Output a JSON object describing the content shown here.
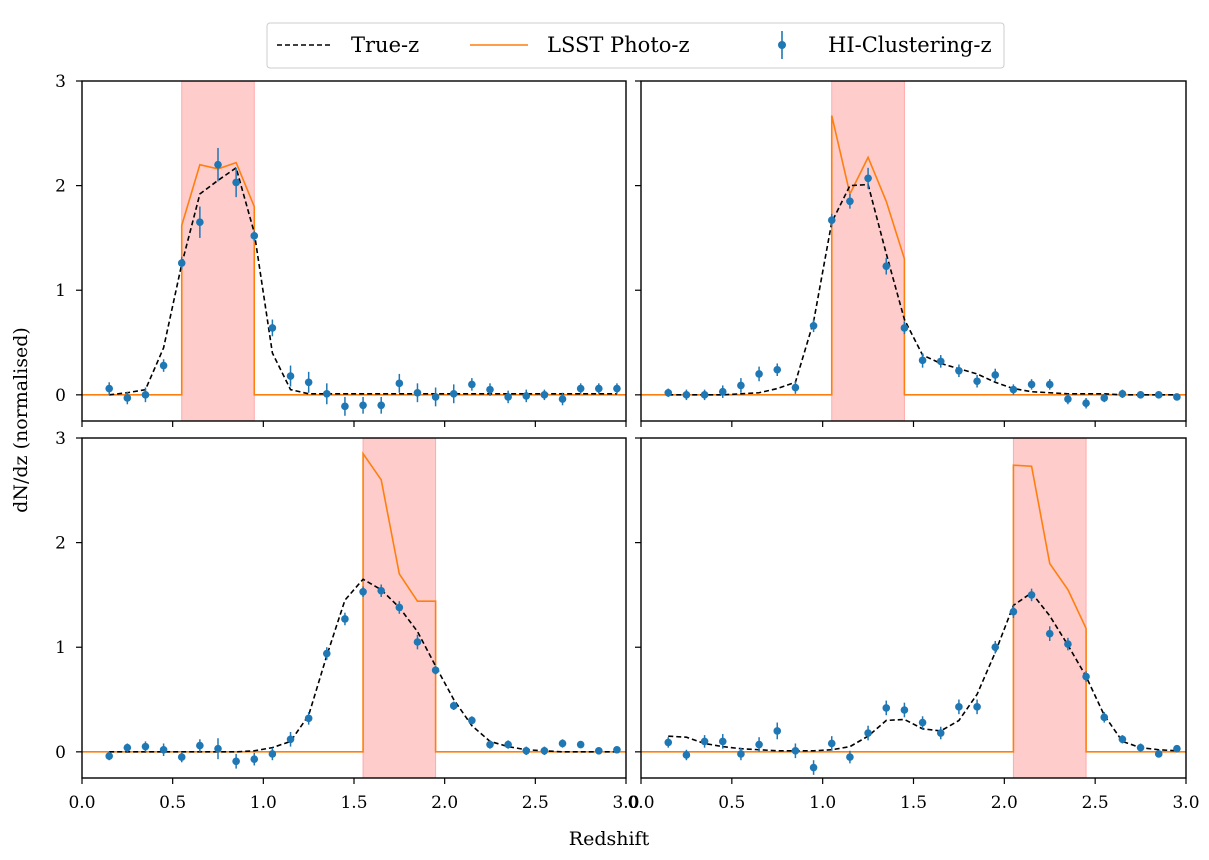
{
  "figure": {
    "xlabel": "Redshift",
    "ylabel": "dN/dz (normalised)"
  },
  "legend": {
    "placement": "top-center",
    "entries": [
      {
        "label": "True-z",
        "style": "dashed",
        "color": "#000000"
      },
      {
        "label": "LSST Photo-z",
        "style": "solid",
        "color": "#ff7f0e"
      },
      {
        "label": "HI-Clustering-z",
        "style": "errorbar-marker",
        "color": "#1f77b4"
      }
    ]
  },
  "chart_data": [
    {
      "type": "line",
      "panel": "top-left",
      "xlim": [
        0,
        3
      ],
      "ylim": [
        -0.25,
        3
      ],
      "yticks": [
        0,
        1,
        2,
        3
      ],
      "xticks": [
        0.0,
        0.5,
        1.0,
        1.5,
        2.0,
        2.5,
        3.0
      ],
      "show_xtick_labels": false,
      "show_ytick_labels": true,
      "band": [
        0.55,
        0.95
      ],
      "band_color": "#ffcccc",
      "true_z": {
        "x": [
          0.15,
          0.25,
          0.35,
          0.45,
          0.55,
          0.65,
          0.75,
          0.85,
          0.95,
          1.05,
          1.15,
          1.25,
          1.35,
          1.45,
          1.55,
          1.65,
          1.75,
          1.85,
          1.95,
          2.05,
          2.15,
          2.25,
          2.35,
          2.45,
          2.55,
          2.65,
          2.75,
          2.85,
          2.95
        ],
        "y": [
          0.0,
          0.02,
          0.05,
          0.45,
          1.25,
          1.92,
          2.05,
          2.17,
          1.55,
          0.4,
          0.05,
          0.01,
          0.01,
          0.01,
          0.01,
          0.01,
          0.01,
          0.01,
          0.01,
          0.01,
          0.01,
          0.01,
          0.01,
          0.01,
          0.01,
          0.01,
          0.01,
          0.01,
          0.01
        ]
      },
      "photo_z": {
        "x": [
          0,
          0.55,
          0.55,
          0.65,
          0.75,
          0.85,
          0.95,
          0.95,
          3.0
        ],
        "y": [
          0,
          0,
          1.62,
          2.2,
          2.16,
          2.22,
          1.8,
          0,
          0
        ]
      },
      "hi_z": {
        "x": [
          0.15,
          0.25,
          0.35,
          0.45,
          0.55,
          0.65,
          0.75,
          0.85,
          0.95,
          1.05,
          1.15,
          1.25,
          1.35,
          1.45,
          1.55,
          1.65,
          1.75,
          1.85,
          1.95,
          2.05,
          2.15,
          2.25,
          2.35,
          2.45,
          2.55,
          2.65,
          2.75,
          2.85,
          2.95
        ],
        "y": [
          0.06,
          -0.03,
          0.0,
          0.28,
          1.26,
          1.65,
          2.2,
          2.03,
          1.52,
          0.64,
          0.18,
          0.12,
          0.01,
          -0.11,
          -0.1,
          -0.1,
          0.11,
          0.02,
          -0.02,
          0.01,
          0.1,
          0.05,
          -0.02,
          -0.01,
          0.0,
          -0.04,
          0.06,
          0.06,
          0.06
        ],
        "err": [
          0.06,
          0.06,
          0.07,
          0.06,
          0.06,
          0.15,
          0.16,
          0.14,
          0.05,
          0.08,
          0.1,
          0.1,
          0.1,
          0.09,
          0.08,
          0.08,
          0.09,
          0.09,
          0.09,
          0.09,
          0.06,
          0.06,
          0.06,
          0.06,
          0.05,
          0.06,
          0.05,
          0.05,
          0.05
        ]
      }
    },
    {
      "type": "line",
      "panel": "top-right",
      "xlim": [
        0,
        3
      ],
      "ylim": [
        -0.25,
        3
      ],
      "yticks": [
        0,
        1,
        2,
        3
      ],
      "xticks": [
        0.0,
        0.5,
        1.0,
        1.5,
        2.0,
        2.5,
        3.0
      ],
      "show_xtick_labels": false,
      "show_ytick_labels": false,
      "band": [
        1.05,
        1.45
      ],
      "band_color": "#ffcccc",
      "true_z": {
        "x": [
          0.15,
          0.25,
          0.35,
          0.45,
          0.55,
          0.65,
          0.75,
          0.85,
          0.95,
          1.05,
          1.15,
          1.25,
          1.35,
          1.45,
          1.55,
          1.65,
          1.75,
          1.85,
          1.95,
          2.05,
          2.15,
          2.25,
          2.35,
          2.45,
          2.55,
          2.65,
          2.75,
          2.85,
          2.95
        ],
        "y": [
          0.0,
          0.0,
          0.0,
          0.0,
          0.01,
          0.02,
          0.06,
          0.12,
          0.7,
          1.65,
          2.0,
          2.01,
          1.35,
          0.72,
          0.38,
          0.3,
          0.25,
          0.2,
          0.12,
          0.06,
          0.03,
          0.02,
          0.01,
          0.01,
          0.01,
          0.0,
          0.0,
          0.0,
          0.0
        ]
      },
      "photo_z": {
        "x": [
          0,
          1.05,
          1.05,
          1.15,
          1.25,
          1.35,
          1.45,
          1.45,
          3.0
        ],
        "y": [
          0,
          0,
          2.67,
          1.92,
          2.27,
          1.85,
          1.3,
          0,
          0
        ]
      },
      "hi_z": {
        "x": [
          0.15,
          0.25,
          0.35,
          0.45,
          0.55,
          0.65,
          0.75,
          0.85,
          0.95,
          1.05,
          1.15,
          1.25,
          1.35,
          1.45,
          1.55,
          1.65,
          1.75,
          1.85,
          1.95,
          2.05,
          2.15,
          2.25,
          2.35,
          2.45,
          2.55,
          2.65,
          2.75,
          2.85,
          2.95
        ],
        "y": [
          0.02,
          0.0,
          0.0,
          0.03,
          0.09,
          0.2,
          0.24,
          0.07,
          0.66,
          1.67,
          1.85,
          2.07,
          1.23,
          0.64,
          0.33,
          0.32,
          0.23,
          0.13,
          0.19,
          0.05,
          0.1,
          0.1,
          -0.04,
          -0.08,
          -0.03,
          0.01,
          0.0,
          0.0,
          -0.02
        ],
        "err": [
          0.04,
          0.05,
          0.05,
          0.06,
          0.07,
          0.07,
          0.06,
          0.06,
          0.06,
          0.06,
          0.07,
          0.1,
          0.08,
          0.06,
          0.07,
          0.06,
          0.06,
          0.06,
          0.06,
          0.05,
          0.05,
          0.05,
          0.05,
          0.05,
          0.04,
          0.04,
          0.03,
          0.03,
          0.03
        ]
      }
    },
    {
      "type": "line",
      "panel": "bottom-left",
      "xlim": [
        0,
        3
      ],
      "ylim": [
        -0.25,
        3
      ],
      "yticks": [
        0,
        1,
        2,
        3
      ],
      "xticks": [
        0.0,
        0.5,
        1.0,
        1.5,
        2.0,
        2.5,
        3.0
      ],
      "show_xtick_labels": true,
      "show_ytick_labels": true,
      "band": [
        1.55,
        1.95
      ],
      "band_color": "#ffcccc",
      "true_z": {
        "x": [
          0.15,
          0.25,
          0.35,
          0.45,
          0.55,
          0.65,
          0.75,
          0.85,
          0.95,
          1.05,
          1.15,
          1.25,
          1.35,
          1.45,
          1.55,
          1.65,
          1.75,
          1.85,
          1.95,
          2.05,
          2.15,
          2.25,
          2.35,
          2.45,
          2.55,
          2.65,
          2.75,
          2.85,
          2.95
        ],
        "y": [
          0.0,
          0.0,
          0.0,
          0.0,
          0.0,
          0.0,
          0.0,
          0.0,
          0.01,
          0.04,
          0.1,
          0.35,
          0.92,
          1.45,
          1.65,
          1.55,
          1.38,
          1.15,
          0.82,
          0.5,
          0.25,
          0.1,
          0.05,
          0.02,
          0.01,
          0.0,
          0.0,
          0.0,
          0.0
        ]
      },
      "photo_z": {
        "x": [
          0,
          1.55,
          1.55,
          1.65,
          1.75,
          1.85,
          1.95,
          1.95,
          3.0
        ],
        "y": [
          0,
          0,
          2.85,
          2.6,
          1.7,
          1.44,
          1.44,
          0,
          0
        ]
      },
      "hi_z": {
        "x": [
          0.15,
          0.25,
          0.35,
          0.45,
          0.55,
          0.65,
          0.75,
          0.85,
          0.95,
          1.05,
          1.15,
          1.25,
          1.35,
          1.45,
          1.55,
          1.65,
          1.75,
          1.85,
          1.95,
          2.05,
          2.15,
          2.25,
          2.35,
          2.45,
          2.55,
          2.65,
          2.75,
          2.85,
          2.95
        ],
        "y": [
          -0.04,
          0.04,
          0.05,
          0.02,
          -0.05,
          0.06,
          0.03,
          -0.09,
          -0.07,
          -0.02,
          0.12,
          0.32,
          0.94,
          1.27,
          1.53,
          1.54,
          1.38,
          1.05,
          0.78,
          0.44,
          0.3,
          0.07,
          0.07,
          0.01,
          0.01,
          0.08,
          0.07,
          0.01,
          0.02
        ],
        "err": [
          0.04,
          0.04,
          0.05,
          0.06,
          0.05,
          0.06,
          0.1,
          0.07,
          0.06,
          0.06,
          0.07,
          0.06,
          0.06,
          0.06,
          0.05,
          0.06,
          0.06,
          0.07,
          0.04,
          0.04,
          0.04,
          0.04,
          0.04,
          0.04,
          0.04,
          0.04,
          0.03,
          0.03,
          0.03
        ]
      }
    },
    {
      "type": "line",
      "panel": "bottom-right",
      "xlim": [
        0,
        3
      ],
      "ylim": [
        -0.25,
        3
      ],
      "yticks": [
        0,
        1,
        2,
        3
      ],
      "xticks": [
        0.0,
        0.5,
        1.0,
        1.5,
        2.0,
        2.5,
        3.0
      ],
      "show_xtick_labels": true,
      "show_ytick_labels": false,
      "band": [
        2.05,
        2.45
      ],
      "band_color": "#ffcccc",
      "true_z": {
        "x": [
          0.15,
          0.25,
          0.35,
          0.45,
          0.55,
          0.65,
          0.75,
          0.85,
          0.95,
          1.05,
          1.15,
          1.25,
          1.35,
          1.45,
          1.55,
          1.65,
          1.75,
          1.85,
          1.95,
          2.05,
          2.15,
          2.25,
          2.35,
          2.45,
          2.55,
          2.65,
          2.75,
          2.85,
          2.95
        ],
        "y": [
          0.15,
          0.14,
          0.08,
          0.05,
          0.03,
          0.02,
          0.01,
          0.01,
          0.01,
          0.02,
          0.05,
          0.15,
          0.3,
          0.31,
          0.22,
          0.2,
          0.3,
          0.55,
          0.95,
          1.4,
          1.52,
          1.3,
          1.02,
          0.72,
          0.35,
          0.1,
          0.04,
          0.02,
          0.01
        ]
      },
      "photo_z": {
        "x": [
          0,
          2.05,
          2.05,
          2.15,
          2.25,
          2.35,
          2.45,
          2.45,
          3.0
        ],
        "y": [
          0,
          0,
          2.74,
          2.73,
          1.8,
          1.55,
          1.18,
          0,
          0
        ]
      },
      "hi_z": {
        "x": [
          0.15,
          0.25,
          0.35,
          0.45,
          0.55,
          0.65,
          0.75,
          0.85,
          0.95,
          1.05,
          1.15,
          1.25,
          1.35,
          1.45,
          1.55,
          1.65,
          1.75,
          1.85,
          1.95,
          2.05,
          2.15,
          2.25,
          2.35,
          2.45,
          2.55,
          2.65,
          2.75,
          2.85,
          2.95
        ],
        "y": [
          0.09,
          -0.03,
          0.1,
          0.1,
          -0.02,
          0.07,
          0.2,
          0.01,
          -0.15,
          0.08,
          -0.05,
          0.18,
          0.42,
          0.4,
          0.28,
          0.18,
          0.43,
          0.43,
          1.0,
          1.34,
          1.5,
          1.13,
          1.03,
          0.72,
          0.33,
          0.12,
          0.04,
          -0.02,
          0.03
        ],
        "err": [
          0.05,
          0.05,
          0.06,
          0.07,
          0.06,
          0.07,
          0.08,
          0.07,
          0.07,
          0.07,
          0.06,
          0.07,
          0.07,
          0.07,
          0.06,
          0.06,
          0.07,
          0.07,
          0.06,
          0.06,
          0.06,
          0.07,
          0.06,
          0.05,
          0.05,
          0.04,
          0.04,
          0.03,
          0.03
        ]
      }
    }
  ]
}
